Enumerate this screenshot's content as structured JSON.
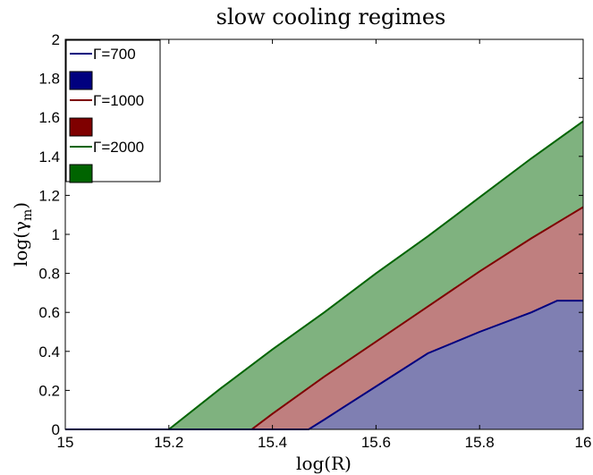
{
  "chart_data": {
    "type": "area",
    "title": "slow cooling regimes",
    "xlabel": "log(R)",
    "ylabel_main": "log(γ",
    "ylabel_sub": "m",
    "ylabel_close": ")",
    "xlim": [
      15,
      16
    ],
    "ylim": [
      0,
      2
    ],
    "xticks": [
      15,
      15.2,
      15.4,
      15.6,
      15.8,
      16
    ],
    "xtick_labels": [
      "15",
      "15.2",
      "15.4",
      "15.6",
      "15.8",
      "16"
    ],
    "yticks": [
      0,
      0.2,
      0.4,
      0.6,
      0.8,
      1,
      1.2,
      1.4,
      1.6,
      1.8,
      2
    ],
    "ytick_labels": [
      "0",
      "0.2",
      "0.4",
      "0.6",
      "0.8",
      "1",
      "1.2",
      "1.4",
      "1.6",
      "1.8",
      "2"
    ],
    "grid": false,
    "legend_position": "top-left",
    "series": [
      {
        "name": "Γ=2000",
        "line_color": "#006400",
        "fill_color": "#7fb27f",
        "x": [
          15.0,
          15.2,
          15.3,
          15.4,
          15.5,
          15.6,
          15.7,
          15.8,
          15.9,
          16.0
        ],
        "y": [
          0.0,
          0.0,
          0.21,
          0.41,
          0.6,
          0.8,
          0.99,
          1.19,
          1.39,
          1.58
        ]
      },
      {
        "name": "Γ=1000",
        "line_color": "#7f0000",
        "fill_color": "#bf7f7f",
        "x": [
          15.0,
          15.36,
          15.4,
          15.5,
          15.6,
          15.7,
          15.8,
          15.9,
          16.0
        ],
        "y": [
          0.0,
          0.0,
          0.08,
          0.27,
          0.45,
          0.63,
          0.81,
          0.98,
          1.14
        ]
      },
      {
        "name": "Γ=700",
        "line_color": "#00007f",
        "fill_color": "#7f7fb2",
        "x": [
          15.0,
          15.47,
          15.5,
          15.6,
          15.7,
          15.8,
          15.9,
          15.95,
          16.0
        ],
        "y": [
          0.0,
          0.0,
          0.05,
          0.22,
          0.39,
          0.5,
          0.6,
          0.66,
          0.66
        ]
      }
    ]
  }
}
